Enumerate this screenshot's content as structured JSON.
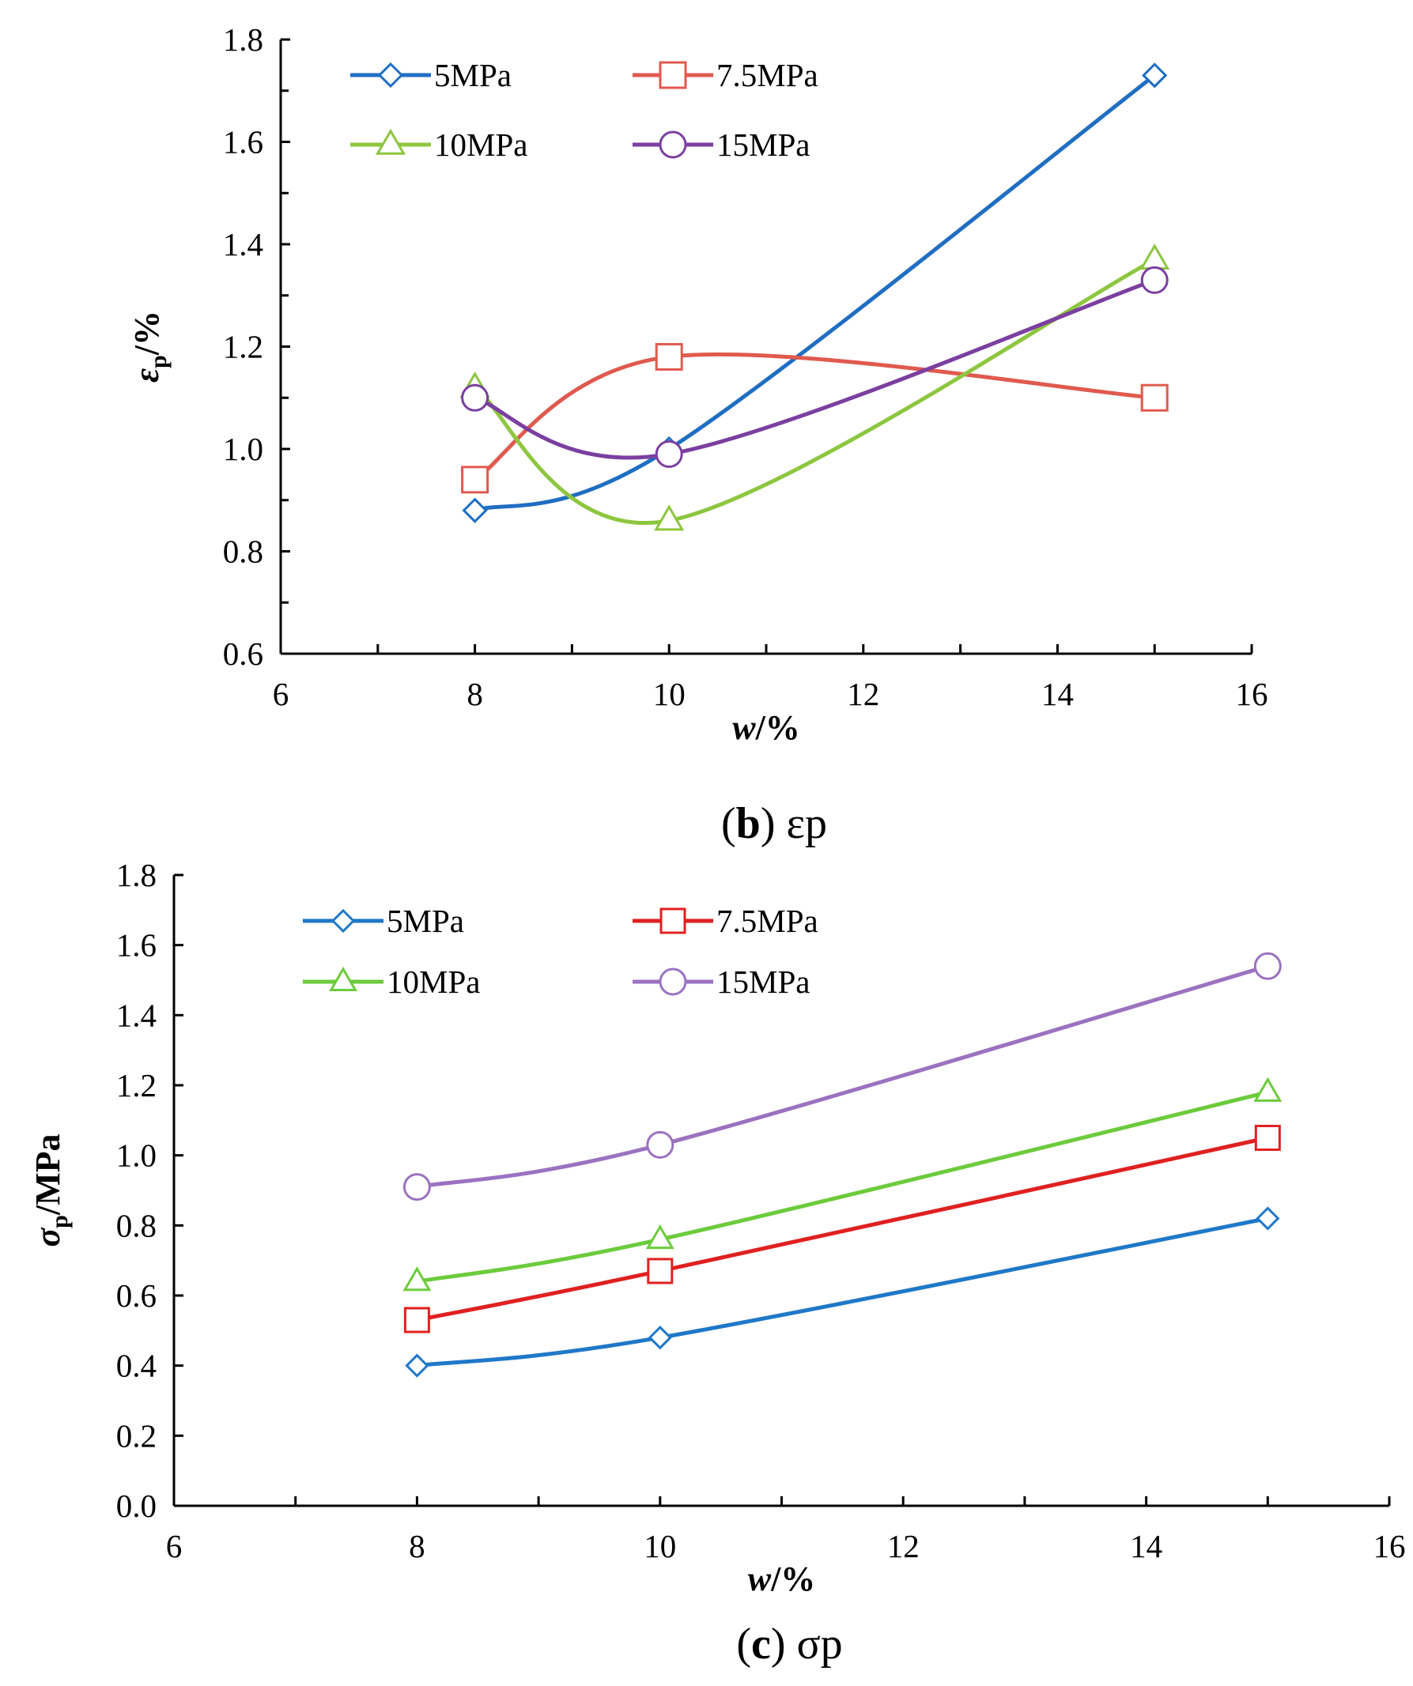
{
  "chart_data": [
    {
      "type": "line",
      "panel": "b",
      "caption": {
        "letter": "b",
        "symbol": "εp"
      },
      "xlabel": {
        "main": "w",
        "unit": "/%"
      },
      "ylabel": {
        "main": "ε",
        "sub": "p",
        "unit": "/%"
      },
      "xlim": [
        6,
        16
      ],
      "ylim": [
        0.6,
        1.8
      ],
      "xticks": [
        "6",
        "8",
        "10",
        "12",
        "14",
        "16"
      ],
      "yticks": [
        "0.6",
        "0.8",
        "1.0",
        "1.2",
        "1.4",
        "1.6",
        "1.8"
      ],
      "x": [
        8,
        10,
        15
      ],
      "smooth": true,
      "legend_position": "top-left",
      "series": [
        {
          "name": "5MPa",
          "values": [
            0.88,
            1.0,
            1.73
          ],
          "color": "#1F6EC2",
          "marker": "diamond"
        },
        {
          "name": "7.5MPa",
          "values": [
            0.94,
            1.18,
            1.1
          ],
          "color": "#E05A4F",
          "marker": "square"
        },
        {
          "name": "10MPa",
          "values": [
            1.12,
            0.86,
            1.37
          ],
          "color": "#8DC63F",
          "marker": "triangle"
        },
        {
          "name": "15MPa",
          "values": [
            1.1,
            0.99,
            1.33
          ],
          "color": "#7B3FA0",
          "marker": "circle"
        }
      ]
    },
    {
      "type": "line",
      "panel": "c",
      "caption": {
        "letter": "c",
        "symbol": "σp"
      },
      "xlabel": {
        "main": "w",
        "unit": "/%"
      },
      "ylabel": {
        "main": "σ",
        "sub": "p",
        "unit": "/MPa"
      },
      "xlim": [
        6,
        16
      ],
      "ylim": [
        0.0,
        1.8
      ],
      "xticks": [
        "6",
        "8",
        "10",
        "12",
        "14",
        "16"
      ],
      "yticks": [
        "0.0",
        "0.2",
        "0.4",
        "0.6",
        "0.8",
        "1.0",
        "1.2",
        "1.4",
        "1.6",
        "1.8"
      ],
      "x": [
        8,
        10,
        15
      ],
      "smooth": true,
      "legend_position": "top-left",
      "series": [
        {
          "name": "5MPa",
          "values": [
            0.4,
            0.48,
            0.82
          ],
          "color": "#1F78C8",
          "marker": "diamond"
        },
        {
          "name": "7.5MPa",
          "values": [
            0.53,
            0.67,
            1.05
          ],
          "color": "#E02020",
          "marker": "square"
        },
        {
          "name": "10MPa",
          "values": [
            0.64,
            0.76,
            1.18
          ],
          "color": "#6CCB3C",
          "marker": "triangle"
        },
        {
          "name": "15MPa",
          "values": [
            0.91,
            1.03,
            1.54
          ],
          "color": "#9B72C0",
          "marker": "circle"
        }
      ]
    }
  ]
}
